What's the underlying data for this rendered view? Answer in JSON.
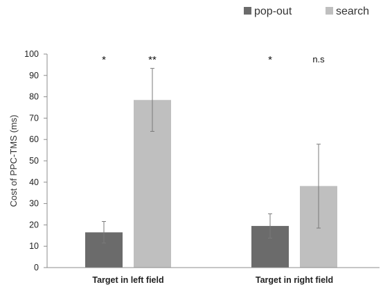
{
  "chart_data": {
    "type": "bar",
    "title": "",
    "xlabel": "",
    "ylabel": "Cost of PPC-TMS (ms)",
    "ylim": [
      0,
      100
    ],
    "yticks": [
      0,
      10,
      20,
      30,
      40,
      50,
      60,
      70,
      80,
      90,
      100
    ],
    "categories": [
      "Target in left field",
      "Target in right field"
    ],
    "series": [
      {
        "name": "pop-out",
        "color": "#6b6b6b",
        "values": [
          16.5,
          19.5
        ],
        "error_low": [
          11.5,
          13.8
        ],
        "error_high": [
          21.6,
          25.2
        ],
        "significance": [
          "*",
          "*"
        ]
      },
      {
        "name": "search",
        "color": "#bfbfbf",
        "values": [
          78.5,
          38.2
        ],
        "error_low": [
          63.8,
          18.5
        ],
        "error_high": [
          93.3,
          57.8
        ],
        "significance": [
          "**",
          "n.s"
        ]
      }
    ],
    "legend_position": "top-right",
    "grid": false
  }
}
